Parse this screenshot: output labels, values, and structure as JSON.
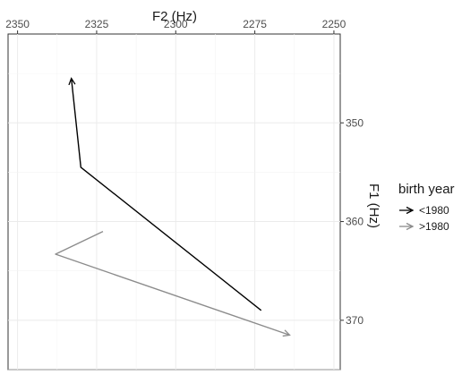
{
  "chart_data": {
    "type": "line",
    "xlabel": "F2 (Hz)",
    "ylabel": "F1 (Hz)",
    "x_axis_position": "top",
    "y_axis_position": "right",
    "x_reversed": true,
    "y_reversed": true,
    "xlim": [
      2353,
      2248
    ],
    "ylim": [
      341,
      375
    ],
    "x_ticks": [
      2350,
      2325,
      2300,
      2275,
      2250
    ],
    "y_ticks": [
      350,
      360,
      370
    ],
    "grid": true,
    "legend": {
      "title": "birth year",
      "position": "right"
    },
    "series": [
      {
        "name": "<1980",
        "color": "#000000",
        "points": [
          [
            2273,
            369.0
          ],
          [
            2330,
            354.5
          ],
          [
            2333,
            345.5
          ]
        ]
      },
      {
        "name": ">1980",
        "color": "#8c8c8c",
        "points": [
          [
            2323,
            361.0
          ],
          [
            2338,
            363.3
          ],
          [
            2264,
            371.5
          ]
        ]
      }
    ]
  }
}
